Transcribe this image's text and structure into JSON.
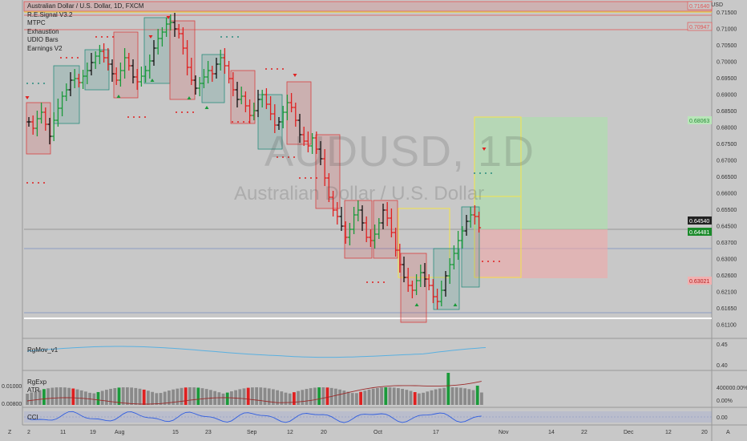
{
  "legend": {
    "title": "Australian Dollar / U.S. Dollar, 1D, FXCM",
    "indicators": [
      "R.E.Signal V3.2",
      "MTPC",
      "Exhaustion",
      "UDIO Bars",
      "Earnings V2"
    ]
  },
  "watermark": {
    "symbol": "AUDUSD, 1D",
    "description": "Australian Dollar / U.S. Dollar"
  },
  "currency_label": "USD",
  "price_axis": {
    "ticks": [
      "0.71500",
      "0.71000",
      "0.70500",
      "0.70000",
      "0.69500",
      "0.69000",
      "0.68500",
      "0.68000",
      "0.67500",
      "0.67000",
      "0.66500",
      "0.66000",
      "0.65500",
      "0.64500",
      "0.63700",
      "0.63000",
      "0.62600",
      "0.62100",
      "0.61650",
      "0.61100"
    ],
    "tags": [
      {
        "label": "0.71640",
        "kind": "red-outline"
      },
      {
        "label": "0.70947",
        "kind": "red-outline"
      },
      {
        "label": "0.68063",
        "kind": "green-light"
      },
      {
        "label": "0.64540",
        "kind": "dark"
      },
      {
        "label": "0.64481",
        "kind": "green"
      },
      {
        "label": "0.63021",
        "kind": "red-light"
      }
    ]
  },
  "panes": {
    "rgmov": {
      "label": "RgMov_v1",
      "ticks": [
        "0.45",
        "0.40"
      ]
    },
    "rgexp": {
      "label": "RgExp",
      "ticks": [
        "400000.00%",
        "0.00%"
      ]
    },
    "atr": {
      "label": "ATR",
      "ticks": [
        "0.01000",
        "0.00800"
      ]
    },
    "cci": {
      "label": "CCI",
      "ticks": [
        "0.00"
      ]
    }
  },
  "time_axis": {
    "labels": [
      "2",
      "11",
      "19",
      "Aug",
      "15",
      "23",
      "Sep",
      "12",
      "20",
      "Oct",
      "17",
      "Nov",
      "14",
      "22",
      "Dec",
      "12",
      "20"
    ],
    "corner_left": "Z",
    "corner_right": "A"
  },
  "colors": {
    "bull_box": "#2a8c7e",
    "bear_box": "#d94040",
    "up": "#1a9a3a",
    "down": "#e02020",
    "neutral": "#111111",
    "rgmov_line": "#5ab0e0",
    "cci_line": "#2f5de0",
    "rgexp_line": "#9b2b2b",
    "target": "#a7e3a7",
    "stop": "#f0a8a8",
    "highlight": "#f5e44a"
  }
}
